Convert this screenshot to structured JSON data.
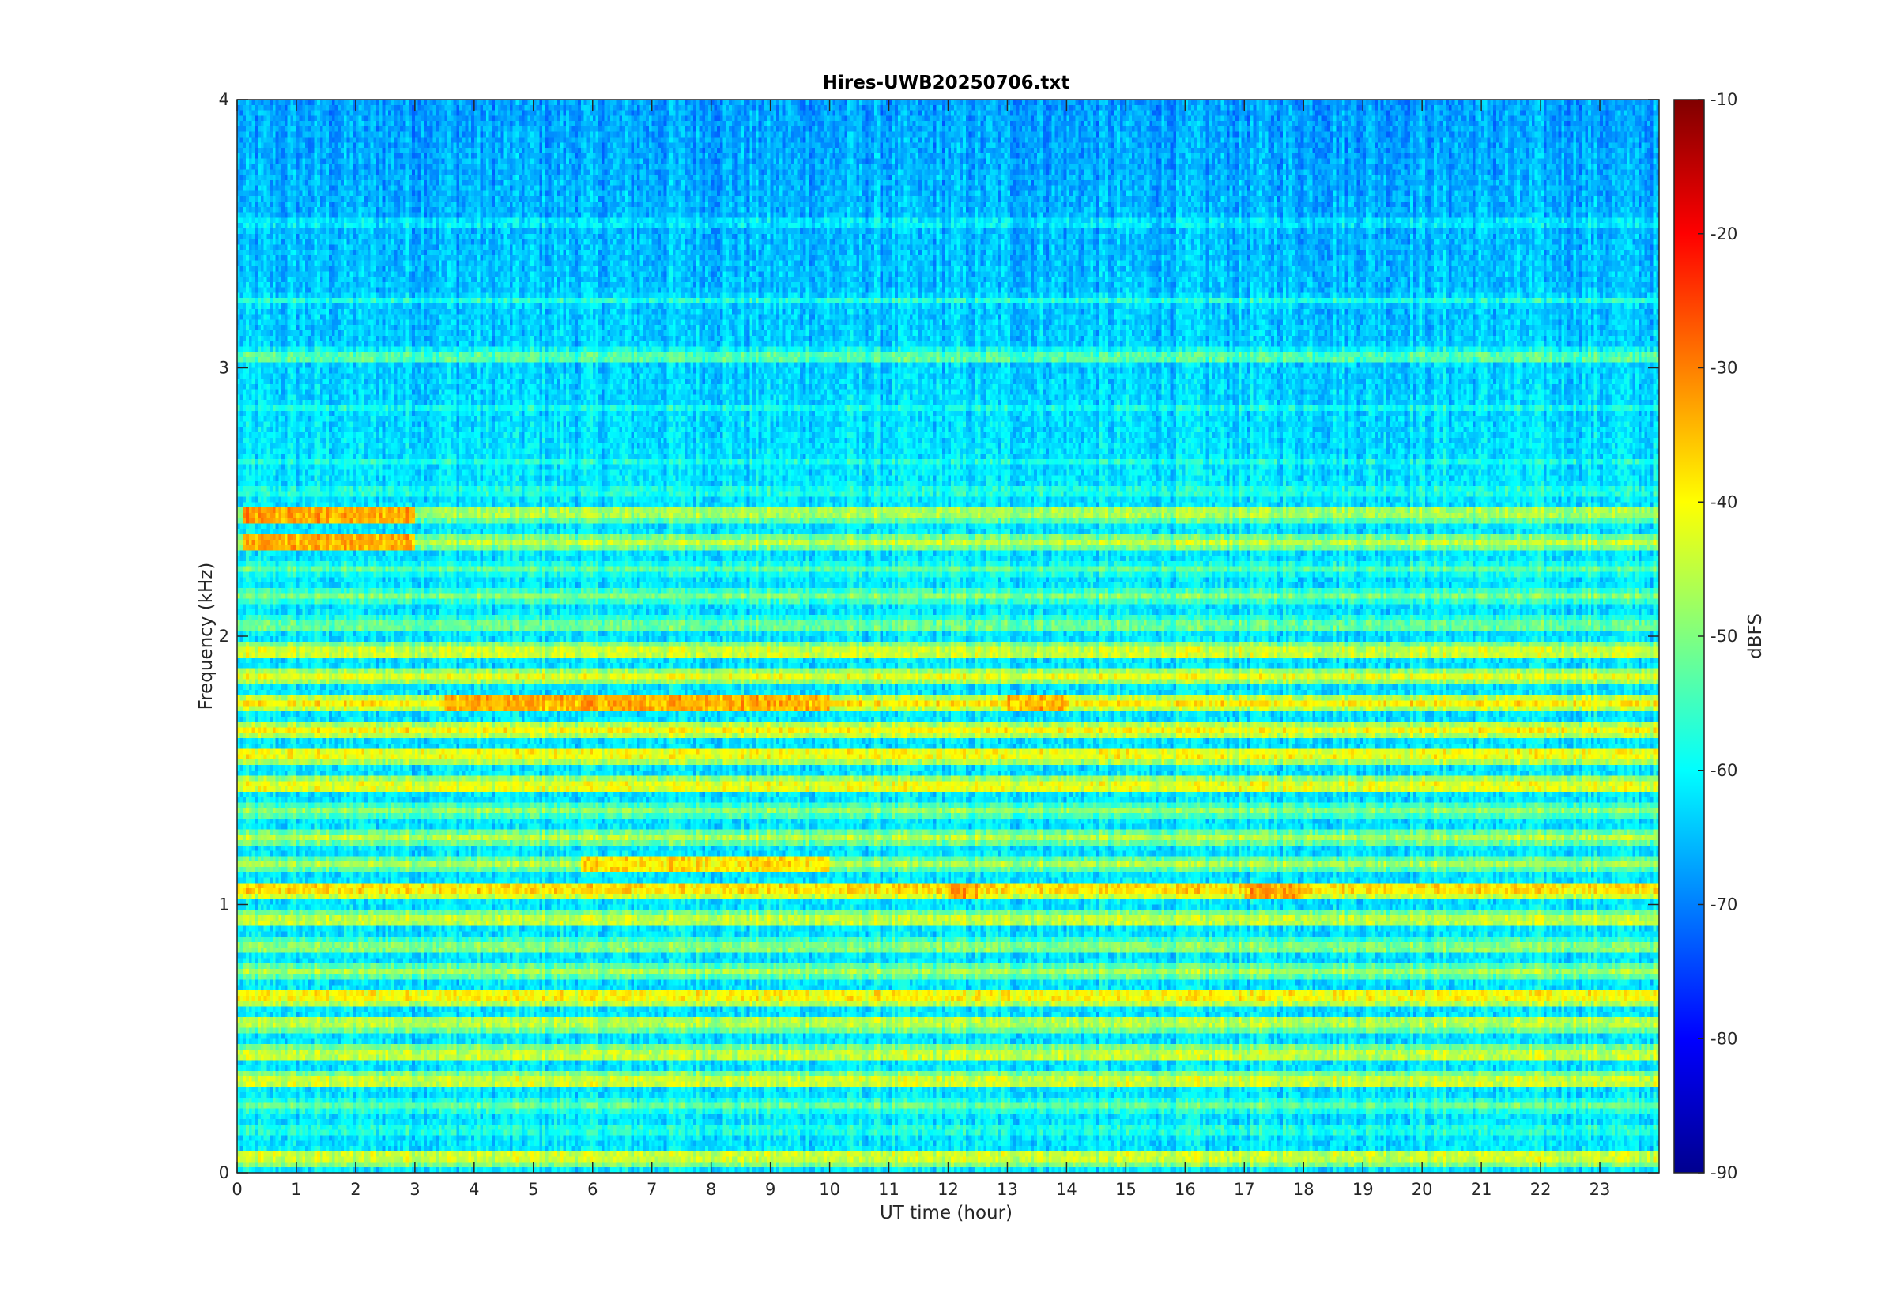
{
  "chart_data": {
    "type": "heatmap",
    "title": "Hires-UWB20250706.txt",
    "xlabel": "UT time (hour)",
    "ylabel": "Frequency (kHz)",
    "xlim": [
      0,
      24
    ],
    "ylim": [
      0,
      4
    ],
    "x_ticks": [
      "0",
      "1",
      "2",
      "3",
      "4",
      "5",
      "6",
      "7",
      "8",
      "9",
      "10",
      "11",
      "12",
      "13",
      "14",
      "15",
      "16",
      "17",
      "18",
      "19",
      "20",
      "21",
      "22",
      "23"
    ],
    "y_ticks": [
      "0",
      "1",
      "2",
      "3",
      "4"
    ],
    "colorbar": {
      "label": "dBFS",
      "range": [
        -90,
        -10
      ],
      "ticks": [
        "-10",
        "-20",
        "-30",
        "-40",
        "-50",
        "-60",
        "-70",
        "-80",
        "-90"
      ],
      "colormap": "jet"
    },
    "background_level_dbfs": -62,
    "bands": [
      {
        "freq_khz": 0.05,
        "level_dbfs": -44
      },
      {
        "freq_khz": 0.1,
        "level_dbfs": -74
      },
      {
        "freq_khz": 0.15,
        "level_dbfs": -58
      },
      {
        "freq_khz": 0.25,
        "level_dbfs": -52
      },
      {
        "freq_khz": 0.35,
        "level_dbfs": -44
      },
      {
        "freq_khz": 0.45,
        "level_dbfs": -45
      },
      {
        "freq_khz": 0.55,
        "level_dbfs": -46
      },
      {
        "freq_khz": 0.65,
        "level_dbfs": -40
      },
      {
        "freq_khz": 0.75,
        "level_dbfs": -47
      },
      {
        "freq_khz": 0.85,
        "level_dbfs": -50
      },
      {
        "freq_khz": 0.95,
        "level_dbfs": -45
      },
      {
        "freq_khz": 1.05,
        "level_dbfs": -38
      },
      {
        "freq_khz": 1.15,
        "level_dbfs": -47
      },
      {
        "freq_khz": 1.25,
        "level_dbfs": -46
      },
      {
        "freq_khz": 1.35,
        "level_dbfs": -49
      },
      {
        "freq_khz": 1.45,
        "level_dbfs": -42
      },
      {
        "freq_khz": 1.55,
        "level_dbfs": -41
      },
      {
        "freq_khz": 1.65,
        "level_dbfs": -40
      },
      {
        "freq_khz": 1.75,
        "level_dbfs": -39
      },
      {
        "freq_khz": 1.85,
        "level_dbfs": -42
      },
      {
        "freq_khz": 1.95,
        "level_dbfs": -44
      },
      {
        "freq_khz": 2.05,
        "level_dbfs": -52
      },
      {
        "freq_khz": 2.15,
        "level_dbfs": -50
      },
      {
        "freq_khz": 2.25,
        "level_dbfs": -53
      },
      {
        "freq_khz": 2.35,
        "level_dbfs": -45
      },
      {
        "freq_khz": 2.45,
        "level_dbfs": -47
      },
      {
        "freq_khz": 2.55,
        "level_dbfs": -58
      },
      {
        "freq_khz": 2.65,
        "level_dbfs": -58
      },
      {
        "freq_khz": 2.85,
        "level_dbfs": -58
      },
      {
        "freq_khz": 3.05,
        "level_dbfs": -52
      },
      {
        "freq_khz": 3.25,
        "level_dbfs": -55
      },
      {
        "freq_khz": 3.55,
        "level_dbfs": -58
      },
      {
        "freq_khz": 3.65,
        "level_dbfs": -62
      },
      {
        "freq_khz": 3.8,
        "level_dbfs": -68
      },
      {
        "freq_khz": 3.95,
        "level_dbfs": -64
      }
    ],
    "hotspots": [
      {
        "t_start_hour": 0.1,
        "t_end_hour": 3.0,
        "freq_khz": 2.45,
        "level_dbfs": -33
      },
      {
        "t_start_hour": 0.1,
        "t_end_hour": 3.0,
        "freq_khz": 2.35,
        "level_dbfs": -34
      },
      {
        "t_start_hour": 3.5,
        "t_end_hour": 10.0,
        "freq_khz": 1.75,
        "level_dbfs": -34
      },
      {
        "t_start_hour": 5.8,
        "t_end_hour": 10.0,
        "freq_khz": 1.15,
        "level_dbfs": -38
      },
      {
        "t_start_hour": 12.0,
        "t_end_hour": 12.5,
        "freq_khz": 1.05,
        "level_dbfs": -33
      },
      {
        "t_start_hour": 17.0,
        "t_end_hour": 18.0,
        "freq_khz": 1.05,
        "level_dbfs": -33
      },
      {
        "t_start_hour": 13.0,
        "t_end_hour": 14.0,
        "freq_khz": 1.75,
        "level_dbfs": -34
      }
    ]
  }
}
